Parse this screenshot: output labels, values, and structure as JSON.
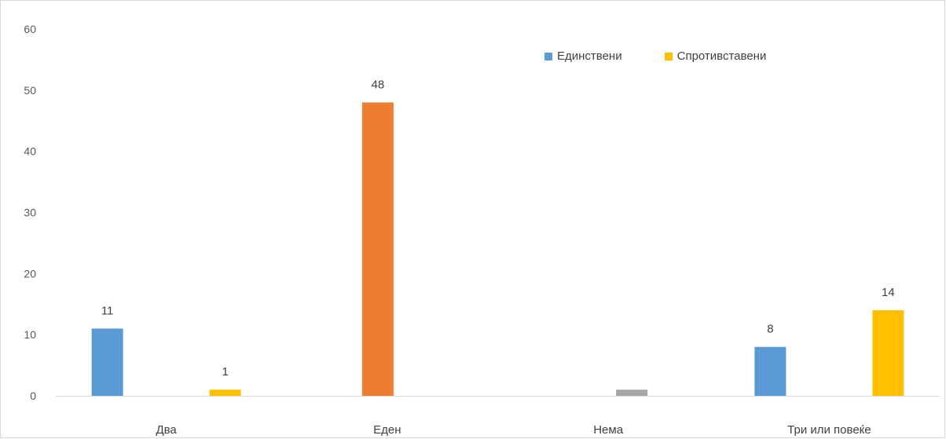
{
  "chart_data": {
    "type": "bar",
    "categories": [
      "Два",
      "Еден",
      "Нема",
      "Три или повеќе"
    ],
    "ylim": [
      0,
      60
    ],
    "yticks": [
      0,
      10,
      20,
      30,
      40,
      50,
      60
    ],
    "legend": {
      "placement": "top-right",
      "entries": [
        {
          "name": "Единствени",
          "color": "#5b9bd5"
        },
        {
          "name": "Спротивставени",
          "color": "#ffc000"
        }
      ]
    },
    "bars": [
      {
        "category": "Два",
        "slot": 0,
        "value": 11,
        "color": "#5b9bd5",
        "label": "11"
      },
      {
        "category": "Два",
        "slot": 1,
        "value": 1,
        "color": "#ffc000",
        "label": "1"
      },
      {
        "category": "Еден",
        "slot": 0,
        "value": 48,
        "color": "#ed7d31",
        "label": "48"
      },
      {
        "category": "Нема",
        "slot": 1,
        "value": 1,
        "color": "#a5a5a5",
        "label": ""
      },
      {
        "category": "Три или повеќе",
        "slot": 0,
        "value": 8,
        "color": "#5b9bd5",
        "label": "8"
      },
      {
        "category": "Три или повеќе",
        "slot": 1,
        "value": 14,
        "color": "#ffc000",
        "label": "14"
      }
    ]
  }
}
